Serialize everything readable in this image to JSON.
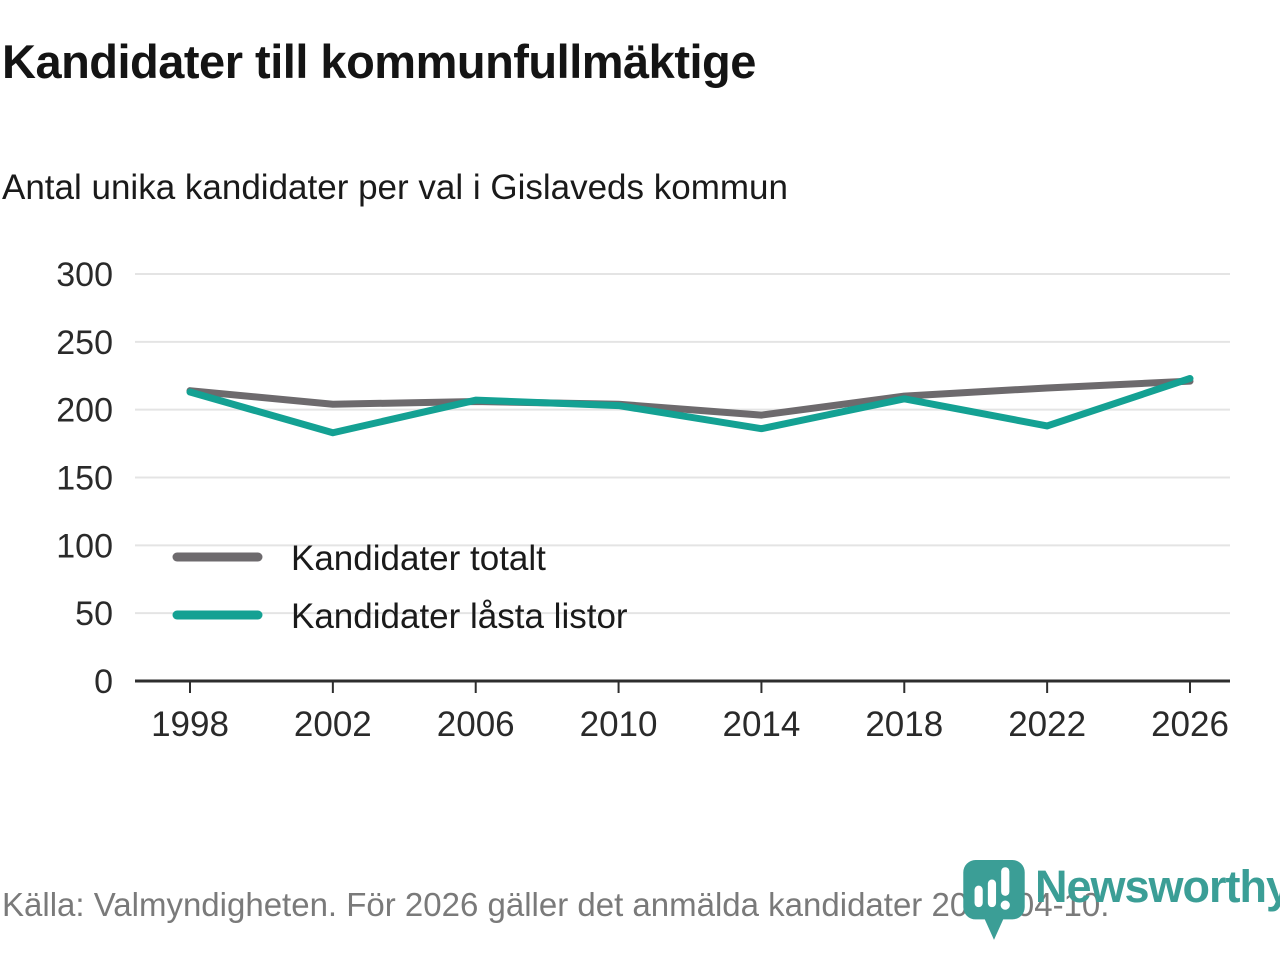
{
  "header": {
    "title": "Kandidater till kommunfullmäktige",
    "subtitle": "Antal unika kandidater per val i Gislaveds kommun"
  },
  "chart_data": {
    "type": "line",
    "x": [
      1998,
      2002,
      2006,
      2010,
      2014,
      2018,
      2022,
      2026
    ],
    "series": [
      {
        "name": "Kandidater totalt",
        "color": "#6d6a6d",
        "values": [
          214,
          204,
          206,
          204,
          196,
          210,
          216,
          221
        ]
      },
      {
        "name": "Kandidater låsta listor",
        "color": "#14a193",
        "values": [
          213,
          183,
          207,
          203,
          186,
          208,
          188,
          223
        ]
      }
    ],
    "ylim": [
      0,
      300
    ],
    "ytick_step": 50,
    "grid": "horizontal",
    "legend_position": "inside-bottom-left",
    "colors": {
      "gridline": "#e4e4e4",
      "axis": "#2e2e2e",
      "tick_label": "#2a2a2a"
    }
  },
  "footer": {
    "source": "Källa: Valmyndigheten. För 2026 gäller det anmälda kandidater 2026-04-10."
  },
  "logo": {
    "brand": "Newsworthy",
    "color": "#3b9e96",
    "icon": "bar-chart-speech-bubble-pin"
  }
}
